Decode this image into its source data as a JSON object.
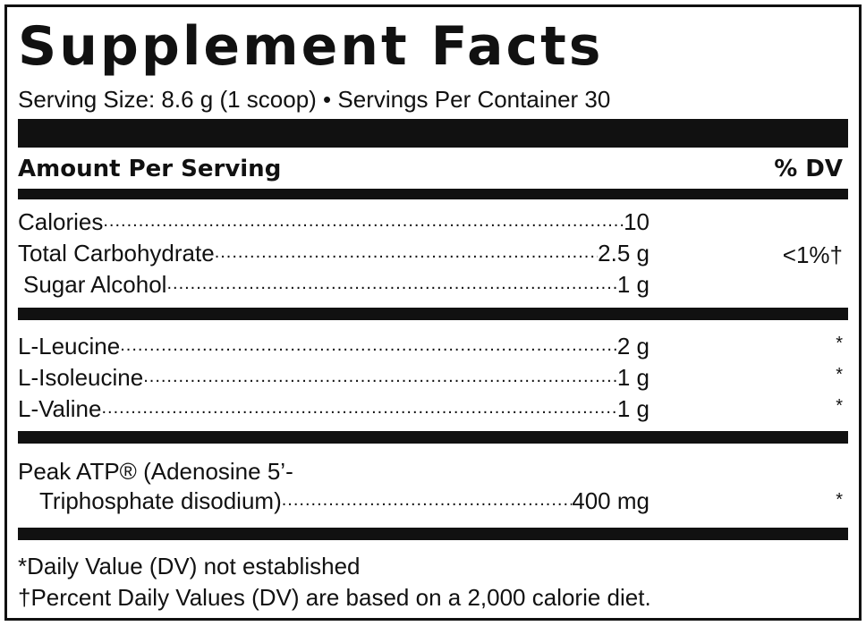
{
  "panel": {
    "title": "Supplement Facts",
    "serving_line": "Serving Size: 8.6 g (1 scoop) • Servings Per Container 30",
    "header": {
      "amount_label": "Amount Per Serving",
      "dv_label": "% DV"
    },
    "group1": [
      {
        "name": "Calories ",
        "amount": "10",
        "dv": ""
      },
      {
        "name": "Total Carbohydrate ",
        "amount": "2.5 g",
        "dv": "<1%†"
      },
      {
        "name": " Sugar Alcohol ",
        "amount": "1 g",
        "dv": ""
      }
    ],
    "group2": [
      {
        "name": "L-Leucine",
        "amount": "2 g",
        "dv": "*"
      },
      {
        "name": "L-Isoleucine",
        "amount": "1 g",
        "dv": "*"
      },
      {
        "name": "L-Valine",
        "amount": "1 g",
        "dv": "*"
      }
    ],
    "group3": {
      "line1": "Peak ATP® (Adenosine 5’-",
      "line2": "Triphosphate disodium) ",
      "amount": "400 mg",
      "dv": "*"
    },
    "footnotes": [
      "*Daily Value (DV) not established",
      "†Percent Daily Values (DV) are based on a 2,000 calorie diet."
    ]
  }
}
